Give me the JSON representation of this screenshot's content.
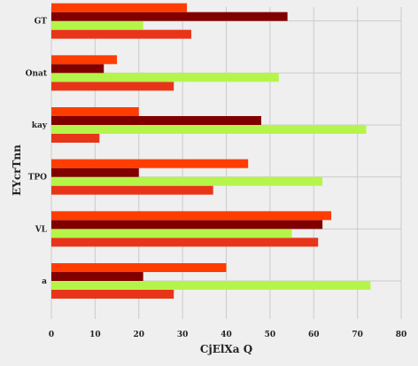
{
  "chart_data": {
    "type": "bar",
    "orientation": "horizontal",
    "categories": [
      "a",
      "VL",
      "TPO",
      "kay",
      "Onat",
      "GT"
    ],
    "series": [
      {
        "color": "#e8351a",
        "values": [
          28,
          61,
          37,
          11,
          28,
          32
        ]
      },
      {
        "color": "#b5f54a",
        "values": [
          73,
          55,
          62,
          72,
          52,
          21
        ]
      },
      {
        "color": "#800000",
        "values": [
          21,
          62,
          20,
          48,
          12,
          54
        ]
      },
      {
        "color": "#ff3d00",
        "values": [
          40,
          64,
          45,
          20,
          15,
          31
        ]
      }
    ],
    "xlabel": "CjElXa Q",
    "ylabel": "EYcrTnn",
    "xlim": [
      0,
      80
    ],
    "xticks": [
      0,
      10,
      20,
      30,
      40,
      50,
      60,
      70,
      80
    ],
    "grid": true,
    "legend": "none"
  }
}
